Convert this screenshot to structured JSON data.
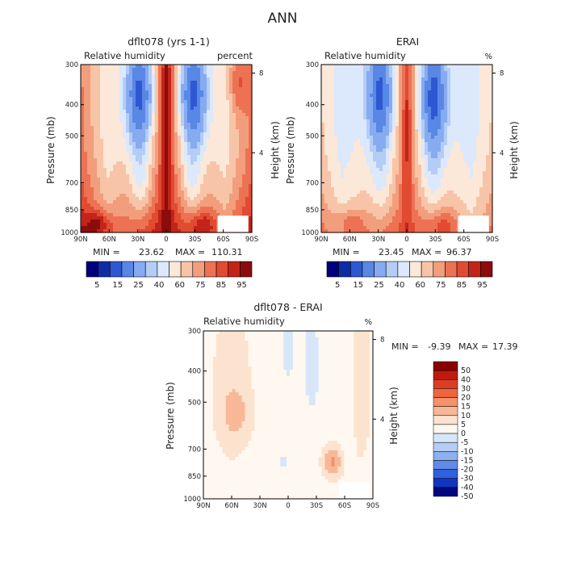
{
  "title": "ANN",
  "chart_data": [
    {
      "type": "heatmap",
      "title": "dflt078 (yrs 1-1)",
      "subtitle": "Relative humidity",
      "units": "percent",
      "ylabel": "Pressure (mb)",
      "y2label": "Height (km)",
      "x_ticks": [
        "90N",
        "60N",
        "30N",
        "0",
        "30S",
        "60S",
        "90S"
      ],
      "y_ticks": [
        "300",
        "400",
        "500",
        "700",
        "850",
        "1000"
      ],
      "y2_ticks": [
        "8",
        "4"
      ],
      "stats": {
        "min_label": "MIN =",
        "min": "23.62",
        "max_label": "MAX =",
        "max": "110.31"
      },
      "cbar_labels": [
        "5",
        "15",
        "25",
        "40",
        "60",
        "75",
        "85",
        "95"
      ],
      "pattern": "model"
    },
    {
      "type": "heatmap",
      "title": "ERAI",
      "subtitle": "Relative humidity",
      "units": "%",
      "ylabel": "Pressure (mb)",
      "y2label": "Height (km)",
      "x_ticks": [
        "90N",
        "60N",
        "30N",
        "0",
        "30S",
        "60S",
        "90S"
      ],
      "y_ticks": [
        "300",
        "400",
        "500",
        "700",
        "850",
        "1000"
      ],
      "y2_ticks": [
        "8",
        "4"
      ],
      "stats": {
        "min_label": "MIN =",
        "min": "23.45",
        "max_label": "MAX =",
        "max": "96.37"
      },
      "cbar_labels": [
        "5",
        "15",
        "25",
        "40",
        "60",
        "75",
        "85",
        "95"
      ],
      "pattern": "obs"
    },
    {
      "type": "heatmap",
      "title": "dflt078 - ERAI",
      "subtitle": "Relative humidity",
      "units": "%",
      "ylabel": "Pressure (mb)",
      "y2label": "Height (km)",
      "x_ticks": [
        "90N",
        "60N",
        "30N",
        "0",
        "30S",
        "60S",
        "90S"
      ],
      "y_ticks": [
        "300",
        "400",
        "500",
        "700",
        "850",
        "1000"
      ],
      "y2_ticks": [
        "8",
        "4"
      ],
      "stats": {
        "min_label": "MIN =",
        "min": "-9.39",
        "max_label": "MAX =",
        "max": "17.39"
      },
      "cbar_labels": [
        "50",
        "40",
        "30",
        "20",
        "15",
        "10",
        "5",
        "0",
        "-5",
        "-10",
        "-15",
        "-20",
        "-30",
        "-40",
        "-50"
      ],
      "pattern": "diff"
    }
  ],
  "colors": {
    "abs_scale": [
      "#00007f",
      "#0d2ca6",
      "#2e58d2",
      "#5887e6",
      "#87abf0",
      "#b3cdf6",
      "#dce8fb",
      "#fbe8d8",
      "#f8c4a8",
      "#f29e7d",
      "#ec7253",
      "#e14b32",
      "#c3241a",
      "#8c0c0c"
    ],
    "diff_scale": [
      "#8b0000",
      "#c01a10",
      "#dd3d22",
      "#ef6540",
      "#f4926a",
      "#f8b898",
      "#fbe3cf",
      "#fff8f0",
      "#d8e6fa",
      "#b5cdf4",
      "#8db1ee",
      "#5f8ae8",
      "#3160dc",
      "#1234be",
      "#00087f"
    ],
    "land": "#ffffff"
  }
}
